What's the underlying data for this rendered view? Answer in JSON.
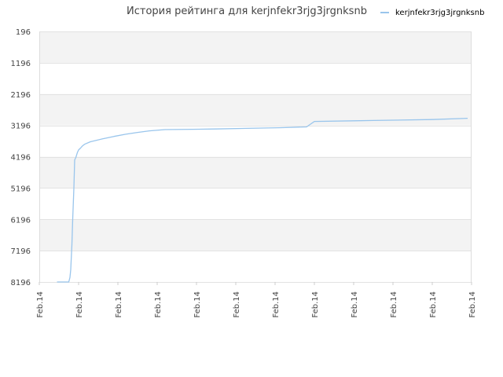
{
  "chart_data": {
    "type": "line",
    "title": "История рейтинга для kerjnfekr3rjg3jrgnksnb",
    "legend": {
      "placement": "top-right",
      "entries": [
        "kerjnfekr3rjg3jrgnksnb"
      ]
    },
    "xlabel": "",
    "ylabel": "",
    "x_tick_labels": [
      "Feb.14",
      "Feb.14",
      "Feb.14",
      "Feb.14",
      "Feb.14",
      "Feb.14",
      "Feb.14",
      "Feb.14",
      "Feb.14",
      "Feb.14",
      "Feb.14",
      "Feb.14"
    ],
    "y_tick_labels": [
      "196",
      "1196",
      "2196",
      "3196",
      "4196",
      "5196",
      "6196",
      "7196",
      "8196"
    ],
    "y_ticks": [
      196,
      1196,
      2196,
      3196,
      4196,
      5196,
      6196,
      7196,
      8196
    ],
    "ylim": [
      196,
      8196
    ],
    "y_inverted": true,
    "xlim": [
      0,
      11
    ],
    "grid": true,
    "alternating_bands": true,
    "series": [
      {
        "name": "kerjnfekr3rjg3jrgnksnb",
        "color": "#99c5ec",
        "x": [
          0.45,
          0.5,
          0.75,
          0.78,
          0.8,
          0.83,
          0.85,
          0.88,
          0.9,
          0.93,
          0.95,
          0.97,
          1.0,
          1.05,
          1.1,
          1.15,
          1.3,
          1.6,
          1.9,
          2.2,
          2.5,
          2.8,
          3.2,
          3.9,
          4.5,
          5.3,
          6.1,
          6.8,
          7.0,
          8.0,
          8.5,
          9.0,
          10.0,
          10.9
        ],
        "y": [
          8196,
          8196,
          8196,
          8050,
          7800,
          7000,
          6200,
          5200,
          4300,
          4220,
          4140,
          4060,
          3980,
          3920,
          3850,
          3800,
          3720,
          3630,
          3550,
          3480,
          3420,
          3370,
          3330,
          3320,
          3310,
          3290,
          3270,
          3245,
          3070,
          3050,
          3040,
          3030,
          3010,
          2970
        ]
      }
    ]
  }
}
